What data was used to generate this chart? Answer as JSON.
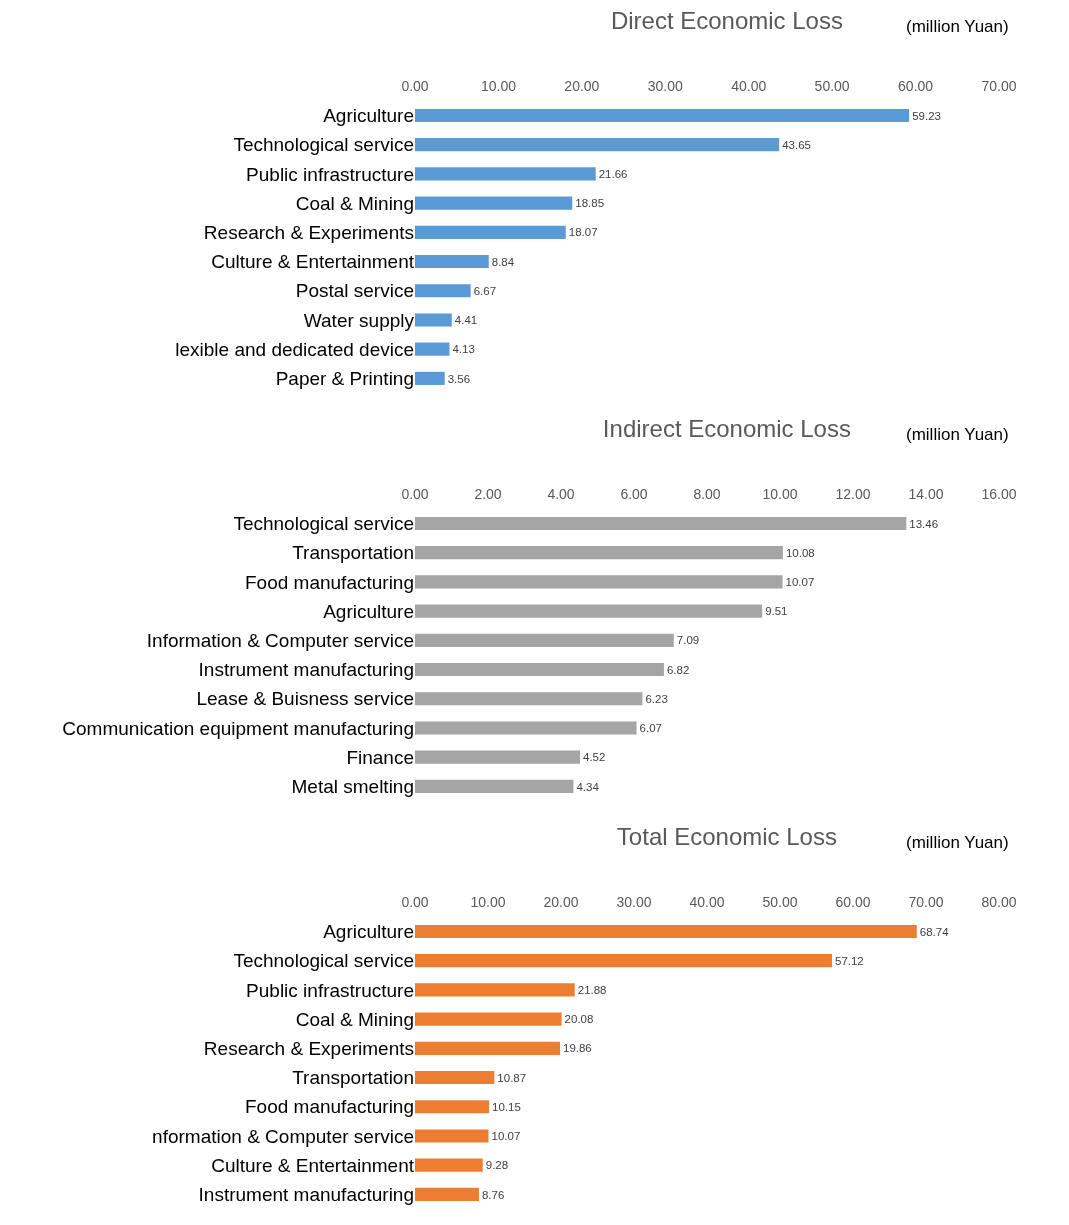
{
  "chart_data": [
    {
      "type": "bar",
      "orientation": "horizontal",
      "title": "Direct Economic Loss",
      "xlabel": "(million Yuan)",
      "categories": [
        "Agriculture",
        "Technological service",
        "Public infrastructure",
        "Coal & Mining",
        "Research & Experiments",
        "Culture & Entertainment",
        "Postal service",
        "Water supply",
        "lexible and dedicated device",
        "Paper & Printing"
      ],
      "values": [
        59.23,
        43.65,
        21.66,
        18.85,
        18.07,
        8.84,
        6.67,
        4.41,
        4.13,
        3.56
      ],
      "color": "#5b9bd5",
      "xlim": [
        0,
        70
      ],
      "xticks": [
        {
          "value": 0,
          "label": "0.00"
        },
        {
          "value": 10,
          "label": "10.00"
        },
        {
          "value": 20,
          "label": "20.00"
        },
        {
          "value": 30,
          "label": "30.00"
        },
        {
          "value": 40,
          "label": "40.00"
        },
        {
          "value": 50,
          "label": "50.00"
        },
        {
          "value": 60,
          "label": "60.00"
        },
        {
          "value": 70,
          "label": "70.00"
        }
      ],
      "data_labels": true
    },
    {
      "type": "bar",
      "orientation": "horizontal",
      "title": "Indirect Economic Loss",
      "xlabel": "(million Yuan)",
      "categories": [
        "Technological service",
        "Transportation",
        "Food manufacturing",
        "Agriculture",
        "Information & Computer service",
        "Instrument manufacturing",
        "Lease & Buisness service",
        "Communication equipment manufacturing",
        "Finance",
        "Metal smelting"
      ],
      "values": [
        13.46,
        10.08,
        10.07,
        9.51,
        7.09,
        6.82,
        6.23,
        6.07,
        4.52,
        4.34
      ],
      "color": "#a5a5a5",
      "xlim": [
        0,
        16
      ],
      "xticks": [
        {
          "value": 0,
          "label": "0.00"
        },
        {
          "value": 2,
          "label": "2.00"
        },
        {
          "value": 4,
          "label": "4.00"
        },
        {
          "value": 6,
          "label": "6.00"
        },
        {
          "value": 8,
          "label": "8.00"
        },
        {
          "value": 10,
          "label": "10.00"
        },
        {
          "value": 12,
          "label": "12.00"
        },
        {
          "value": 14,
          "label": "14.00"
        },
        {
          "value": 16,
          "label": "16.00"
        }
      ],
      "data_labels": true
    },
    {
      "type": "bar",
      "orientation": "horizontal",
      "title": "Total Economic Loss",
      "xlabel": "(million Yuan)",
      "categories": [
        "Agriculture",
        "Technological service",
        "Public infrastructure",
        "Coal & Mining",
        "Research & Experiments",
        "Transportation",
        "Food manufacturing",
        "nformation & Computer service",
        "Culture & Entertainment",
        "Instrument manufacturing"
      ],
      "values": [
        68.74,
        57.12,
        21.88,
        20.08,
        19.86,
        10.87,
        10.15,
        10.07,
        9.28,
        8.76
      ],
      "color": "#ed7d31",
      "xlim": [
        0,
        80
      ],
      "xticks": [
        {
          "value": 0,
          "label": "0.00"
        },
        {
          "value": 10,
          "label": "10.00"
        },
        {
          "value": 20,
          "label": "20.00"
        },
        {
          "value": 30,
          "label": "30.00"
        },
        {
          "value": 40,
          "label": "40.00"
        },
        {
          "value": 50,
          "label": "50.00"
        },
        {
          "value": 60,
          "label": "60.00"
        },
        {
          "value": 70,
          "label": "70.00"
        },
        {
          "value": 80,
          "label": "80.00"
        }
      ],
      "data_labels": true
    }
  ]
}
